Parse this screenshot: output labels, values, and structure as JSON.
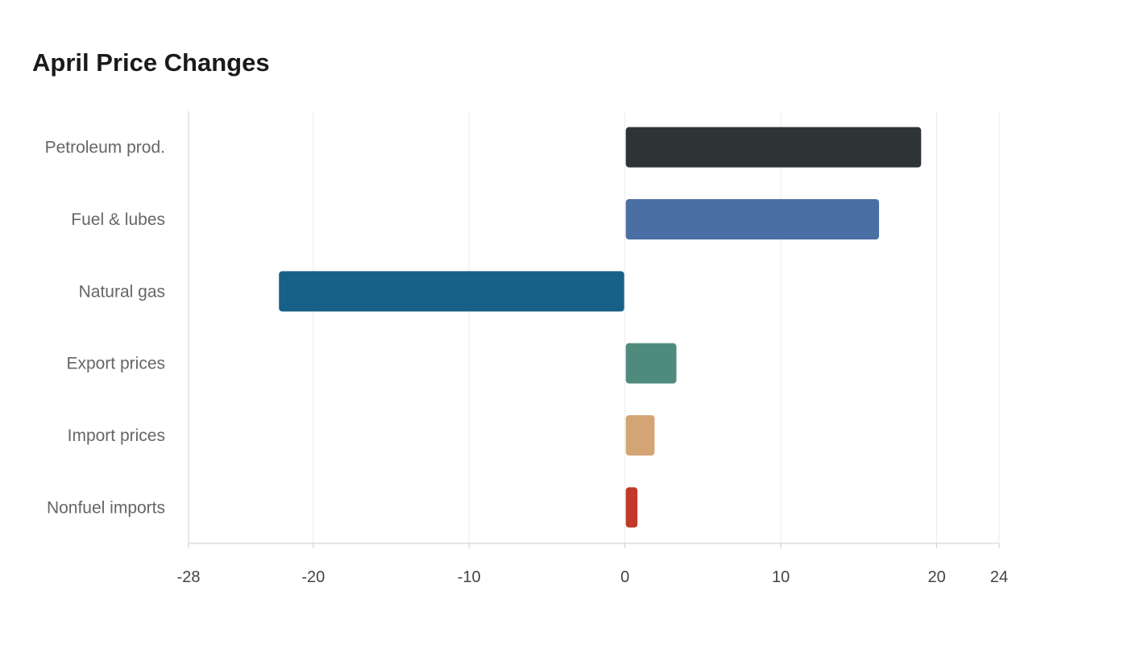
{
  "chart_data": {
    "type": "bar",
    "orientation": "horizontal",
    "title": "April Price Changes",
    "xlabel": "",
    "ylabel": "",
    "categories": [
      "Petroleum prod.",
      "Fuel & lubes",
      "Natural gas",
      "Export prices",
      "Import prices",
      "Nonfuel imports"
    ],
    "values": [
      19.0,
      16.3,
      -22.2,
      3.3,
      1.9,
      0.8
    ],
    "colors": [
      "#2d3436",
      "#4a6fa5",
      "#176087",
      "#4f8b7c",
      "#d4a574",
      "#c0392b"
    ],
    "xlim": [
      -28,
      24
    ],
    "xticks": [
      -28,
      -20,
      -10,
      0,
      10,
      20,
      24
    ],
    "xtick_labels": [
      "-28",
      "-20",
      "-10",
      "0",
      "10",
      "20",
      "24"
    ],
    "grid": "vertical"
  }
}
